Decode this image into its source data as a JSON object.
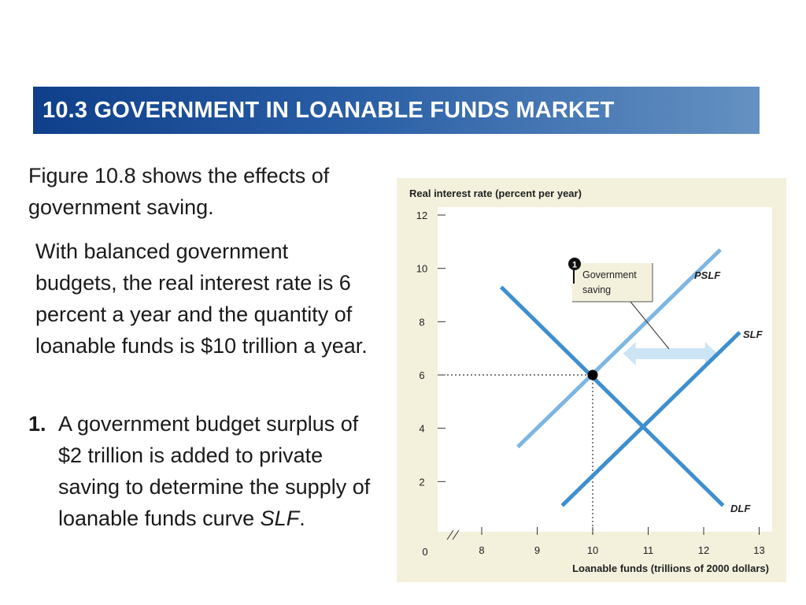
{
  "slide": {
    "title": "10.3 GOVERNMENT IN LOANABLE FUNDS MARKET",
    "paragraph1": "Figure 10.8 shows the effects of government saving.",
    "paragraph2": "With balanced government budgets, the real interest rate is 6 percent a year and the quantity of loanable funds is $10 trillion a year.",
    "item1_number": "1.",
    "item1_text": "A government budget surplus of $2 trillion is added to private saving to determine the supply of loanable funds curve ",
    "item1_emph": "SLF",
    "item1_end": "."
  },
  "chart_data": {
    "type": "line",
    "ylabel": "Real interest rate (percent per year)",
    "xlabel": "Loanable funds (trillions of 2000 dollars)",
    "origin_label": "0",
    "x_ticks": [
      8,
      9,
      10,
      11,
      12,
      13
    ],
    "y_ticks": [
      2,
      4,
      6,
      8,
      10,
      12
    ],
    "xlim": [
      7.4,
      13
    ],
    "ylim": [
      0,
      12
    ],
    "x_axis_break": true,
    "series": [
      {
        "name": "DLF",
        "color": "#3e8fcf",
        "points": [
          [
            8.35,
            9.3
          ],
          [
            12.35,
            1.1
          ]
        ]
      },
      {
        "name": "PSLF",
        "color": "#7db6e2",
        "points": [
          [
            8.65,
            3.3
          ],
          [
            12.3,
            10.7
          ]
        ]
      },
      {
        "name": "SLF",
        "color": "#3e8fcf",
        "points": [
          [
            9.45,
            1.1
          ],
          [
            12.65,
            7.6
          ]
        ]
      }
    ],
    "equilibrium": {
      "x": 10,
      "y": 6
    },
    "marker": {
      "number": "1",
      "label_line1": "Government",
      "label_line2": "saving"
    },
    "shift_arrow": {
      "from_x": 10.55,
      "to_x": 12.25,
      "y": 6.8,
      "color": "#cde4f5"
    }
  }
}
